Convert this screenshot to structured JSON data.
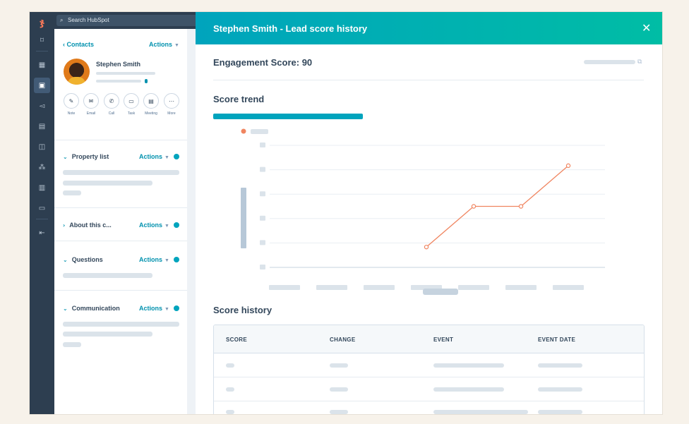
{
  "search": {
    "placeholder": "Search HubSpot"
  },
  "sidebar": {
    "back_link": "Contacts",
    "actions_label": "Actions",
    "contact_name": "Stephen Smith",
    "quick_actions": [
      {
        "label": "Note",
        "icon": "note-icon"
      },
      {
        "label": "Email",
        "icon": "email-icon"
      },
      {
        "label": "Call",
        "icon": "call-icon"
      },
      {
        "label": "Task",
        "icon": "task-icon"
      },
      {
        "label": "Meeting",
        "icon": "meeting-icon"
      },
      {
        "label": "More",
        "icon": "more-icon"
      }
    ],
    "sections": [
      {
        "title": "Property list",
        "expanded": true
      },
      {
        "title": "About this c...",
        "expanded": false
      },
      {
        "title": "Questions",
        "expanded": true
      },
      {
        "title": "Communication",
        "expanded": true
      }
    ]
  },
  "panel": {
    "title": "Stephen Smith - Lead score history",
    "engagement_score": "Engagement Score: 90",
    "score_trend_title": "Score trend",
    "score_history_title": "Score history",
    "table_headers": [
      "SCORE",
      "CHANGE",
      "EVENT",
      "EVENT DATE"
    ]
  },
  "colors": {
    "header_gradient_start": "#00a4bd",
    "header_gradient_end": "#00bda5",
    "link": "#0091ae",
    "nav_rail": "#2d3e50",
    "series_line": "#f08560",
    "skeleton": "#dbe3ea"
  },
  "chart_data": {
    "type": "line",
    "categories": [
      "",
      "",
      "",
      "",
      "",
      "",
      ""
    ],
    "series": [
      {
        "values": [
          null,
          null,
          null,
          10,
          30,
          30,
          50
        ]
      }
    ],
    "ylim": [
      0,
      60
    ],
    "grid": true,
    "legend": "top-left"
  }
}
